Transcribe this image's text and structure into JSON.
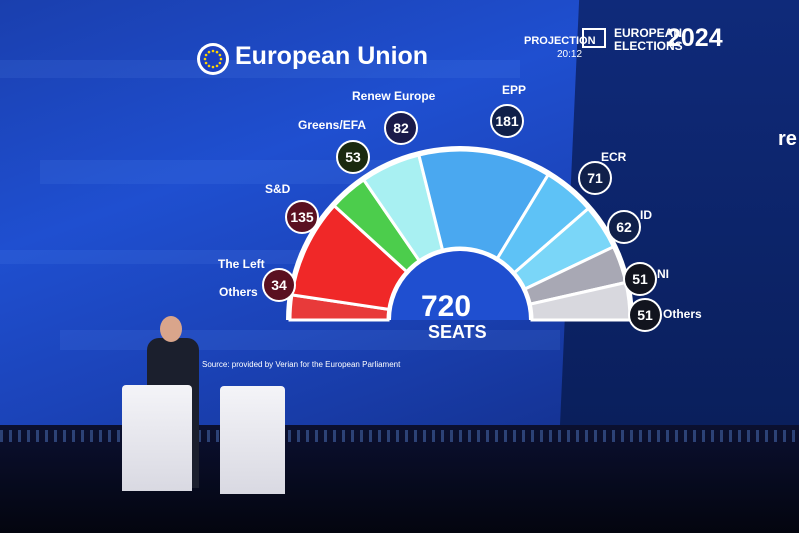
{
  "header": {
    "title": "European Union",
    "projection_label": "PROJECTION",
    "time": "20:12",
    "elections_line1": "EUROPEAN",
    "elections_line2": "ELECTIONS",
    "year": "2024",
    "partial_word": "re"
  },
  "chart": {
    "total": "720",
    "total_label": "SEATS",
    "source": "Source: provided by Verian for the European Parliament",
    "parties": [
      {
        "name": "The Left",
        "seats": 34,
        "color": "#e83a3a"
      },
      {
        "name": "S&D",
        "seats": 135,
        "color": "#f02828"
      },
      {
        "name": "Greens/EFA",
        "seats": 53,
        "color": "#4ccd4c"
      },
      {
        "name": "Renew Europe",
        "seats": 82,
        "color": "#a8f0f2"
      },
      {
        "name": "EPP",
        "seats": 181,
        "color": "#4aa8f0"
      },
      {
        "name": "ECR",
        "seats": 71,
        "color": "#5ec2f6"
      },
      {
        "name": "ID",
        "seats": 62,
        "color": "#7ad6f8"
      },
      {
        "name": "NI",
        "seats": 51,
        "color": "#a8a8b4"
      },
      {
        "name": "Others",
        "seats": 51,
        "color": "#d8d8de"
      }
    ],
    "left_others_label": "Others"
  },
  "colors": {
    "badge_fill": "#1a1733",
    "screen": "#1f4fd0"
  }
}
